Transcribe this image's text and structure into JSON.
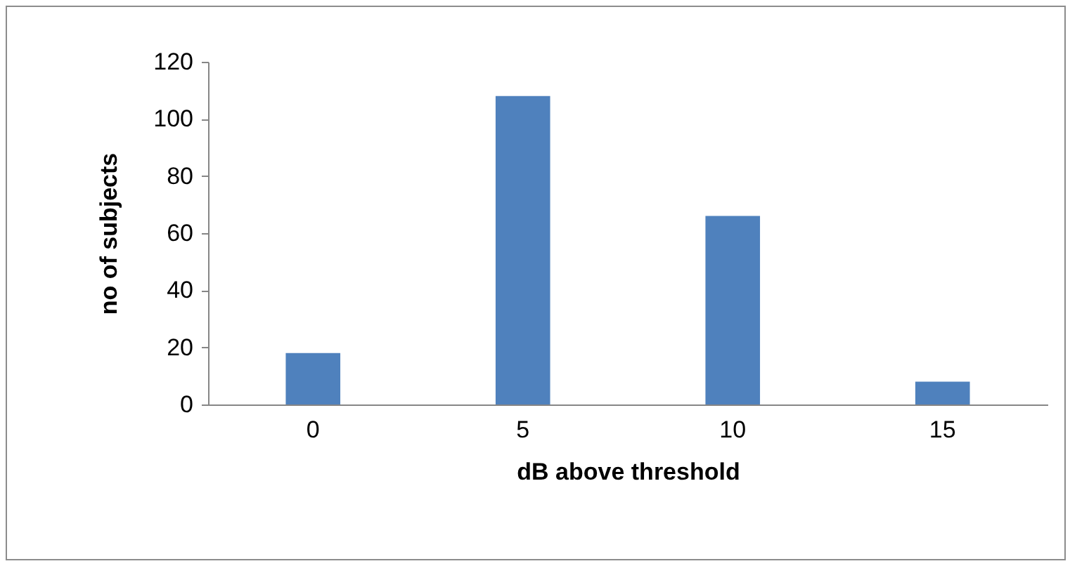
{
  "chart_data": {
    "type": "bar",
    "xlabel": "dB above threshold",
    "ylabel": "no of subjects",
    "categories": [
      "0",
      "5",
      "10",
      "15"
    ],
    "values": [
      18,
      108,
      66,
      8
    ],
    "color": "#4f81bd",
    "ylim": [
      0,
      120
    ],
    "yticks": [
      0,
      20,
      40,
      60,
      80,
      100,
      120
    ],
    "grid": false
  }
}
